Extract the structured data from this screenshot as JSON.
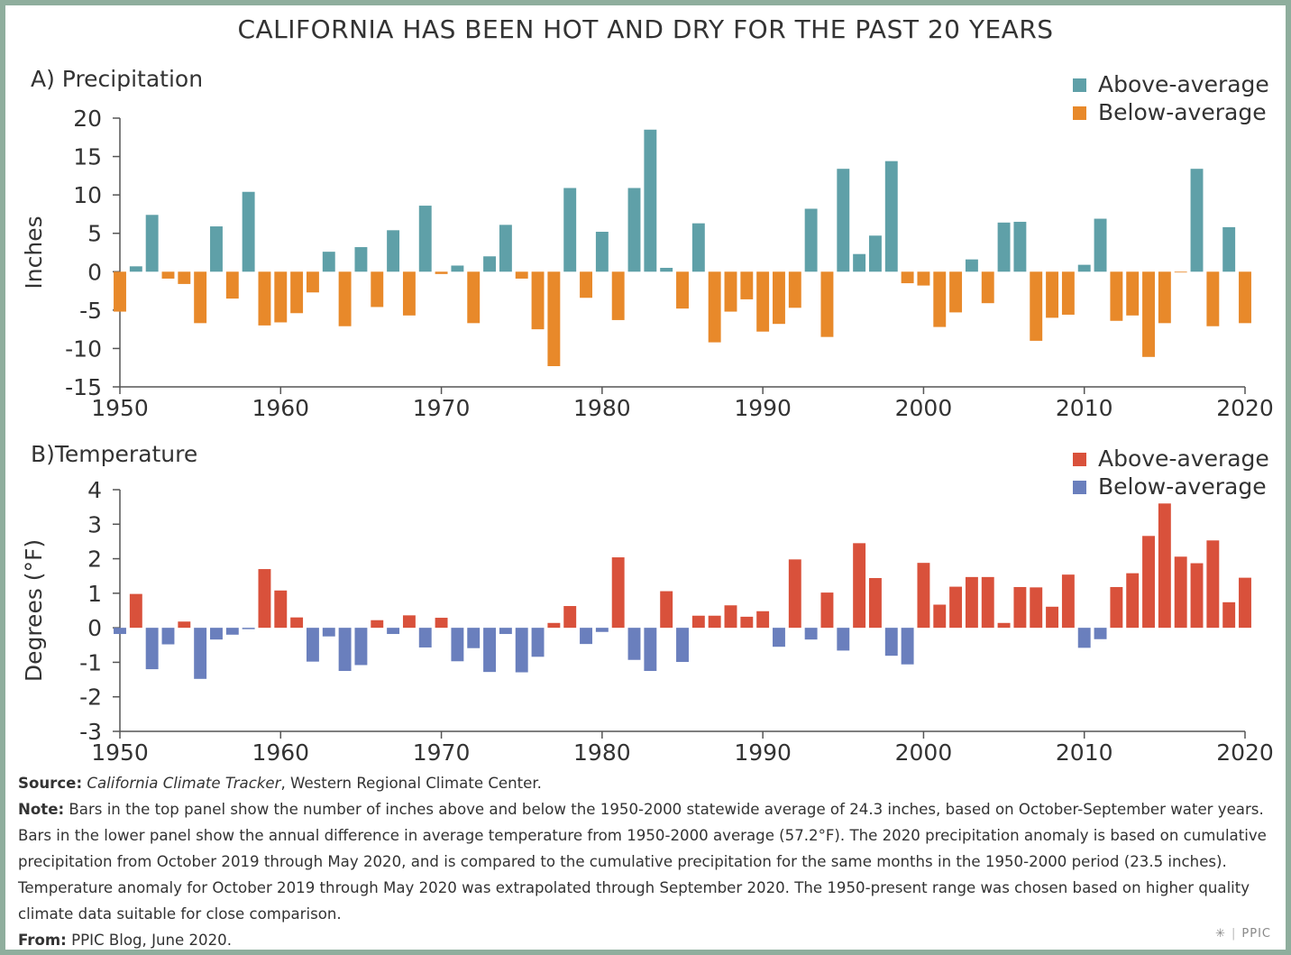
{
  "title": "CALIFORNIA HAS BEEN HOT AND DRY FOR THE PAST 20 YEARS",
  "colors": {
    "precip_above": "#5fa0a8",
    "precip_below": "#e8892a",
    "temp_above": "#d9513b",
    "temp_below": "#6a7fbd",
    "frame": "#8fae9d",
    "axis": "#555555"
  },
  "chart_data": [
    {
      "type": "bar",
      "title": "A) Precipitation",
      "ylabel": "Inches",
      "xlabel": "",
      "ylim": [
        -15,
        20
      ],
      "yticks": [
        -15,
        -10,
        -5,
        0,
        5,
        10,
        15,
        20
      ],
      "xlim": [
        1950,
        2020
      ],
      "xticks": [
        1950,
        1960,
        1970,
        1980,
        1990,
        2000,
        2010,
        2020
      ],
      "legend": [
        "Above-average",
        "Below-average"
      ],
      "legend_position": "top-right",
      "x": [
        1950,
        1951,
        1952,
        1953,
        1954,
        1955,
        1956,
        1957,
        1958,
        1959,
        1960,
        1961,
        1962,
        1963,
        1964,
        1965,
        1966,
        1967,
        1968,
        1969,
        1970,
        1971,
        1972,
        1973,
        1974,
        1975,
        1976,
        1977,
        1978,
        1979,
        1980,
        1981,
        1982,
        1983,
        1984,
        1985,
        1986,
        1987,
        1988,
        1989,
        1990,
        1991,
        1992,
        1993,
        1994,
        1995,
        1996,
        1997,
        1998,
        1999,
        2000,
        2001,
        2002,
        2003,
        2004,
        2005,
        2006,
        2007,
        2008,
        2009,
        2010,
        2011,
        2012,
        2013,
        2014,
        2015,
        2016,
        2017,
        2018,
        2019,
        2020
      ],
      "values": [
        -5.2,
        0.7,
        7.4,
        -0.9,
        -1.6,
        -6.7,
        5.9,
        -3.5,
        10.4,
        -7.0,
        -6.6,
        -5.4,
        -2.7,
        2.6,
        -7.1,
        3.2,
        -4.6,
        5.4,
        -5.7,
        8.6,
        -0.3,
        0.8,
        -6.7,
        2.0,
        6.1,
        -0.9,
        -7.5,
        -12.3,
        10.9,
        -3.4,
        5.2,
        -6.3,
        10.9,
        18.5,
        0.5,
        -4.8,
        6.3,
        -9.2,
        -5.2,
        -3.6,
        -7.8,
        -6.8,
        -4.7,
        8.2,
        -8.5,
        13.4,
        2.3,
        4.7,
        14.4,
        -1.5,
        -1.8,
        -7.2,
        -5.3,
        1.6,
        -4.1,
        6.4,
        6.5,
        -9.0,
        -6.0,
        -5.6,
        0.9,
        6.9,
        -6.4,
        -5.7,
        -11.1,
        -6.7,
        -0.1,
        13.4,
        -7.1,
        5.8,
        -6.7
      ]
    },
    {
      "type": "bar",
      "title": "B)Temperature",
      "ylabel": "Degrees (°F)",
      "xlabel": "",
      "ylim": [
        -3,
        4
      ],
      "yticks": [
        -3,
        -2,
        -1,
        0,
        1,
        2,
        3,
        4
      ],
      "xlim": [
        1950,
        2020
      ],
      "xticks": [
        1950,
        1960,
        1970,
        1980,
        1990,
        2000,
        2010,
        2020
      ],
      "legend": [
        "Above-average",
        "Below-average"
      ],
      "legend_position": "top-right",
      "x": [
        1950,
        1951,
        1952,
        1953,
        1954,
        1955,
        1956,
        1957,
        1958,
        1959,
        1960,
        1961,
        1962,
        1963,
        1964,
        1965,
        1966,
        1967,
        1968,
        1969,
        1970,
        1971,
        1972,
        1973,
        1974,
        1975,
        1976,
        1977,
        1978,
        1979,
        1980,
        1981,
        1982,
        1983,
        1984,
        1985,
        1986,
        1987,
        1988,
        1989,
        1990,
        1991,
        1992,
        1993,
        1994,
        1995,
        1996,
        1997,
        1998,
        1999,
        2000,
        2001,
        2002,
        2003,
        2004,
        2005,
        2006,
        2007,
        2008,
        2009,
        2010,
        2011,
        2012,
        2013,
        2014,
        2015,
        2016,
        2017,
        2018,
        2019,
        2020
      ],
      "values": [
        -0.18,
        0.98,
        -1.2,
        -0.48,
        0.18,
        -1.48,
        -0.34,
        -0.2,
        -0.04,
        1.7,
        1.08,
        0.3,
        -0.98,
        -0.25,
        -1.25,
        -1.08,
        0.22,
        -0.18,
        0.36,
        -0.57,
        0.29,
        -0.97,
        -0.59,
        -1.28,
        -0.18,
        -1.29,
        -0.84,
        0.14,
        0.63,
        -0.47,
        -0.12,
        2.04,
        -0.93,
        -1.25,
        1.06,
        -0.99,
        0.35,
        0.35,
        0.65,
        0.32,
        0.48,
        -0.55,
        1.98,
        -0.34,
        1.02,
        -0.66,
        2.45,
        1.44,
        -0.81,
        -1.06,
        1.88,
        0.67,
        1.19,
        1.47,
        1.47,
        0.14,
        1.18,
        1.17,
        0.61,
        1.54,
        -0.58,
        -0.33,
        1.18,
        1.58,
        2.66,
        3.6,
        2.06,
        1.87,
        2.53,
        0.74,
        1.45
      ]
    }
  ],
  "notes": {
    "source_label": "Source:",
    "source_italic": "California Climate Tracker",
    "source_rest": ", Western Regional Climate Center.",
    "note_label": "Note:",
    "note_text": "Bars in the top panel show the number of inches above and below the 1950-2000 statewide average of 24.3 inches, based on October-September water years. Bars in the lower panel show the annual difference in average temperature from 1950-2000 average (57.2°F). The 2020 precipitation anomaly is based on cumulative precipitation from October 2019 through May 2020, and is compared to the cumulative precipitation for the same months in the 1950-2000 period (23.5 inches). Temperature anomaly for October 2019 through May 2020 was extrapolated through September 2020. The 1950-present range was chosen based on higher quality climate data suitable for close comparison.",
    "from_label": "From:",
    "from_text": "PPIC Blog, June 2020."
  },
  "logo": "PPIC"
}
